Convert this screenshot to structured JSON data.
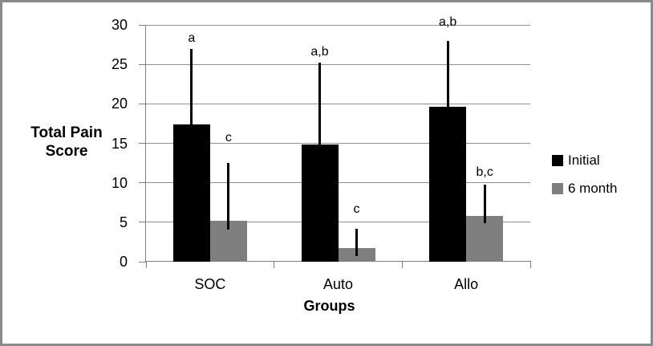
{
  "figure": {
    "background": "#ffffff",
    "border_color": "#8a8a8a"
  },
  "chart_data": {
    "type": "bar",
    "title": "",
    "categories": [
      "SOC",
      "Auto",
      "Allo"
    ],
    "series": [
      {
        "name": "Initial",
        "color": "#000000",
        "values": [
          17.4,
          14.8,
          19.6
        ],
        "error_low": [
          17.4,
          14.8,
          19.6
        ],
        "error_high": [
          27.0,
          25.2,
          28.0
        ],
        "sig_labels": [
          "a",
          "a,b",
          "a,b"
        ],
        "sig_label_y": [
          28.3,
          26.5,
          30.3
        ]
      },
      {
        "name": "6 month",
        "color": "#7f7f7f",
        "values": [
          5.2,
          1.7,
          5.8
        ],
        "error_low": [
          4.1,
          0.7,
          4.9
        ],
        "error_high": [
          12.5,
          4.2,
          9.8
        ],
        "sig_labels": [
          "c",
          "c",
          "b,c"
        ],
        "sig_label_y": [
          15.7,
          6.6,
          11.3
        ]
      }
    ],
    "xlabel": "Groups",
    "ylabel": "Total Pain Score",
    "ylim": [
      0,
      30
    ],
    "yticks": [
      0,
      5,
      10,
      15,
      20,
      25,
      30
    ],
    "grid": true,
    "legend_position": "right",
    "gridline_color": "#919191",
    "axis_color": "#808080",
    "error_bar_color": "#000000",
    "text_color": "#000000"
  }
}
